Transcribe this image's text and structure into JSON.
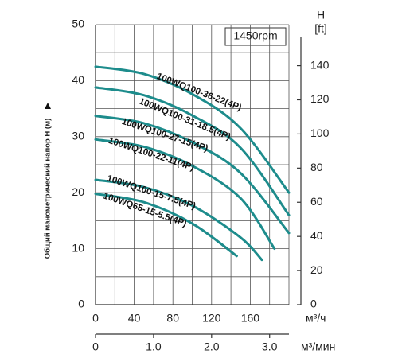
{
  "chart_data": {
    "type": "line",
    "ylabel": "Общий манометрический напор H (м)",
    "y2label": "H",
    "y2unit": "[ft]",
    "annotation": "1450rpm",
    "xlabel": "м³/ч",
    "x2label": "м³/мин",
    "xlim": [
      0,
      200
    ],
    "xticks": [
      0,
      40,
      80,
      120,
      160
    ],
    "x2lim": [
      0,
      3.333
    ],
    "x2ticks": [
      0,
      {
        "value": 1,
        "label": "1.0"
      },
      {
        "value": 2,
        "label": "2.0"
      },
      {
        "value": 3,
        "label": "3.0"
      }
    ],
    "ylim": [
      0,
      50
    ],
    "yticks": [
      0,
      10,
      20,
      30,
      40,
      50
    ],
    "y2lim": [
      0,
      164.04
    ],
    "y2ticks": [
      0,
      20,
      40,
      60,
      80,
      100,
      120,
      140
    ],
    "xgrid": [
      0,
      20,
      40,
      60,
      80,
      100,
      120,
      140,
      160,
      180,
      200
    ],
    "ygrid": [
      0,
      5,
      10,
      15,
      20,
      25,
      30,
      35,
      40,
      45,
      50
    ],
    "series": [
      {
        "name": "100WQ100-36-22(4P)",
        "color": "#1d8c8c",
        "x": [
          0,
          50,
          100,
          150,
          200
        ],
        "values": [
          42.5,
          41.2,
          37.6,
          31.5,
          20
        ]
      },
      {
        "name": "100WQ100-31-18.5(4P)",
        "color": "#1d8c8c",
        "x": [
          0,
          50,
          100,
          150,
          200
        ],
        "values": [
          38.8,
          37.4,
          33.8,
          28,
          16
        ]
      },
      {
        "name": "100WQ100-27-15(4P)",
        "color": "#1d8c8c",
        "x": [
          0,
          50,
          100,
          150,
          200
        ],
        "values": [
          33.7,
          32.4,
          29,
          23.5,
          12.8
        ]
      },
      {
        "name": "100WQ100-22-11(4P)",
        "color": "#1d8c8c",
        "x": [
          0,
          50,
          100,
          150,
          185
        ],
        "values": [
          29.5,
          28.2,
          24.8,
          19,
          10
        ]
      },
      {
        "name": "100WQ100-15-7.5(4P)",
        "color": "#1d8c8c",
        "x": [
          0,
          50,
          100,
          150,
          172
        ],
        "values": [
          22.3,
          21,
          17.7,
          12,
          8
        ]
      },
      {
        "name": "100WQ65-15-5.5(4P)",
        "color": "#1d8c8c",
        "x": [
          0,
          50,
          100,
          146
        ],
        "values": [
          19.8,
          18.3,
          14.5,
          8.7
        ]
      }
    ]
  }
}
